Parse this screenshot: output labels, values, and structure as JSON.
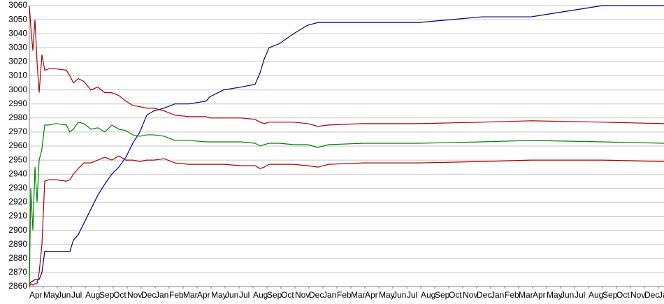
{
  "chart_data": {
    "type": "line",
    "xlim": [
      0,
      908
    ],
    "ylim": [
      2860,
      3060
    ],
    "yticks": [
      2860,
      2870,
      2880,
      2890,
      2900,
      2910,
      2920,
      2930,
      2940,
      2950,
      2960,
      2970,
      2980,
      2990,
      3000,
      3010,
      3020,
      3030,
      3040,
      3050,
      3060
    ],
    "xticks": [
      {
        "value": 0,
        "label": "Apr"
      },
      {
        "value": 20,
        "label": "May"
      },
      {
        "value": 40,
        "label": "Jun"
      },
      {
        "value": 60,
        "label": "Jul"
      },
      {
        "value": 80,
        "label": "Aug"
      },
      {
        "value": 100,
        "label": "Sep"
      },
      {
        "value": 120,
        "label": "Oct"
      },
      {
        "value": 140,
        "label": "Nov"
      },
      {
        "value": 160,
        "label": "Dec"
      },
      {
        "value": 180,
        "label": "Jan"
      },
      {
        "value": 200,
        "label": "Feb"
      },
      {
        "value": 220,
        "label": "Mar"
      },
      {
        "value": 240,
        "label": "Apr"
      },
      {
        "value": 260,
        "label": "May"
      },
      {
        "value": 280,
        "label": "Jun"
      },
      {
        "value": 300,
        "label": "Jul"
      },
      {
        "value": 320,
        "label": "Aug"
      },
      {
        "value": 340,
        "label": "Sep"
      },
      {
        "value": 360,
        "label": "Oct"
      },
      {
        "value": 380,
        "label": "Nov"
      },
      {
        "value": 400,
        "label": "Dec"
      },
      {
        "value": 420,
        "label": "Jan"
      },
      {
        "value": 440,
        "label": "Feb"
      },
      {
        "value": 460,
        "label": "Mar"
      },
      {
        "value": 480,
        "label": "Apr"
      },
      {
        "value": 500,
        "label": "May"
      },
      {
        "value": 520,
        "label": "Jun"
      },
      {
        "value": 540,
        "label": "Jul"
      },
      {
        "value": 560,
        "label": "Aug"
      },
      {
        "value": 580,
        "label": "Sep"
      },
      {
        "value": 600,
        "label": "Oct"
      },
      {
        "value": 620,
        "label": "Nov"
      },
      {
        "value": 640,
        "label": "Dec"
      },
      {
        "value": 660,
        "label": "Jan"
      },
      {
        "value": 680,
        "label": "Feb"
      },
      {
        "value": 700,
        "label": "Mar"
      },
      {
        "value": 720,
        "label": "Apr"
      },
      {
        "value": 740,
        "label": "May"
      },
      {
        "value": 760,
        "label": "Jun"
      },
      {
        "value": 780,
        "label": "Jul"
      },
      {
        "value": 800,
        "label": "Aug"
      },
      {
        "value": 820,
        "label": "Sep"
      },
      {
        "value": 840,
        "label": "Oct"
      },
      {
        "value": 860,
        "label": "Nov"
      },
      {
        "value": 880,
        "label": "Dec"
      },
      {
        "value": 900,
        "label": "Jan"
      }
    ],
    "grid": true,
    "x": [
      0,
      2,
      5,
      8,
      11,
      14,
      18,
      22,
      28,
      38,
      53,
      58,
      63,
      70,
      78,
      88,
      98,
      108,
      118,
      128,
      138,
      148,
      158,
      168,
      178,
      193,
      208,
      228,
      253,
      258,
      278,
      303,
      323,
      330,
      336,
      343,
      358,
      378,
      398,
      413,
      428,
      478,
      558,
      648,
      718,
      820,
      908
    ],
    "series": [
      {
        "color": "#000080",
        "values": [
          2862,
          2863,
          2864,
          2865,
          2865,
          2865,
          2870,
          2885,
          2885,
          2885,
          2885,
          2885,
          2893,
          2897,
          2905,
          2915,
          2925,
          2933,
          2940,
          2945,
          2952,
          2962,
          2970,
          2982,
          2985,
          2987,
          2990,
          2990,
          2992,
          2995,
          3000,
          3002,
          3004,
          3012,
          3022,
          3030,
          3033,
          3040,
          3046,
          3048,
          3048,
          3048,
          3048,
          3052,
          3052,
          3060,
          3060
        ]
      },
      {
        "color": "#008000",
        "values": [
          2860,
          2930,
          2900,
          2945,
          2920,
          2950,
          2958,
          2975,
          2975,
          2976,
          2975,
          2970,
          2972,
          2977,
          2976,
          2972,
          2973,
          2970,
          2975,
          2972,
          2971,
          2968,
          2967,
          2968,
          2968,
          2967,
          2964,
          2964,
          2963,
          2963,
          2963,
          2963,
          2962,
          2960,
          2961,
          2962,
          2962,
          2961,
          2961,
          2959,
          2961,
          2962,
          2962,
          2963,
          2964,
          2963,
          2962
        ]
      },
      {
        "color": "#aa0000",
        "values": [
          3060,
          3045,
          3028,
          3050,
          3020,
          2998,
          3025,
          3014,
          3015,
          3015,
          3014,
          3010,
          3005,
          3008,
          3006,
          3000,
          3002,
          2998,
          2998,
          2996,
          2992,
          2989,
          2988,
          2987,
          2987,
          2985,
          2982,
          2981,
          2981,
          2980,
          2980,
          2980,
          2979,
          2977,
          2976,
          2977,
          2977,
          2977,
          2976,
          2974,
          2975,
          2976,
          2976,
          2977,
          2978,
          2977,
          2976
        ]
      },
      {
        "color": "#aa0000",
        "values": [
          2860,
          2862,
          2861,
          2862,
          2862,
          2870,
          2890,
          2935,
          2936,
          2936,
          2935,
          2936,
          2940,
          2944,
          2948,
          2948,
          2950,
          2952,
          2950,
          2953,
          2950,
          2950,
          2949,
          2950,
          2950,
          2951,
          2948,
          2947,
          2947,
          2947,
          2947,
          2946,
          2946,
          2944,
          2945,
          2947,
          2947,
          2947,
          2946,
          2945,
          2947,
          2948,
          2948,
          2949,
          2950,
          2950,
          2949
        ]
      }
    ]
  }
}
